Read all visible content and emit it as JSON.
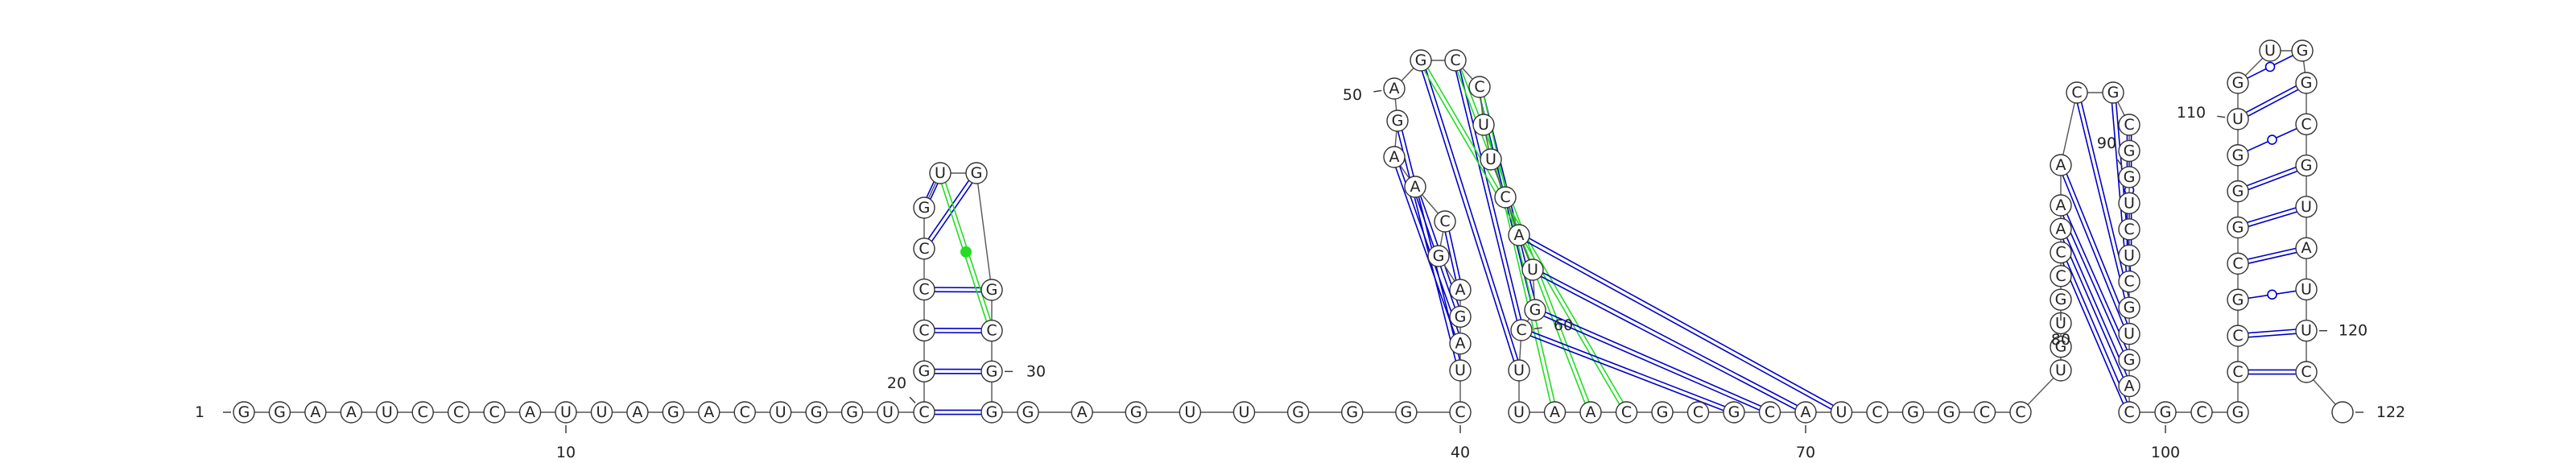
{
  "sequence": "GGAAUCCCAUUAGACUGGUCGCCCGUGGCGGGAGUUGGGCUAGAGCAAGAGCCUUCAUGCUUAACGCGCAUCGGCCUGUGCCAAACGCGGUCUCGUGACGCGCCGCGGGUGUGGCGUAUUC",
  "length": 122,
  "position_labels": [
    {
      "text": "1",
      "index": 1
    },
    {
      "text": "10",
      "index": 10
    },
    {
      "text": "20",
      "index": 20
    },
    {
      "text": "30",
      "index": 30
    },
    {
      "text": "40",
      "index": 40
    },
    {
      "text": "50",
      "index": 50
    },
    {
      "text": "60",
      "index": 60
    },
    {
      "text": "70",
      "index": 70
    },
    {
      "text": "80",
      "index": 80
    },
    {
      "text": "90",
      "index": 90
    },
    {
      "text": "100",
      "index": 100
    },
    {
      "text": "110",
      "index": 110
    },
    {
      "text": "120",
      "index": 120
    },
    {
      "text": "122",
      "index": 122
    }
  ],
  "base_pairs": [
    {
      "i": 20,
      "j": 31,
      "type": "canonical"
    },
    {
      "i": 21,
      "j": 30,
      "type": "canonical"
    },
    {
      "i": 22,
      "j": 29,
      "type": "canonical"
    },
    {
      "i": 23,
      "j": 28,
      "type": "canonical"
    },
    {
      "i": 24,
      "j": 27,
      "type": "canonical"
    },
    {
      "i": 25,
      "j": 26,
      "type": "canonical"
    },
    {
      "i": 26,
      "j": 29,
      "type": "non-canonical"
    },
    {
      "i": 41,
      "j": 49,
      "type": "canonical"
    },
    {
      "i": 42,
      "j": 48,
      "type": "canonical"
    },
    {
      "i": 43,
      "j": 47,
      "type": "canonical"
    },
    {
      "i": 44,
      "j": 46,
      "type": "canonical"
    },
    {
      "i": 51,
      "j": 61,
      "type": "canonical"
    },
    {
      "i": 52,
      "j": 60,
      "type": "canonical"
    },
    {
      "i": 53,
      "j": 59,
      "type": "canonical"
    },
    {
      "i": 51,
      "j": 65,
      "type": "non-canonical"
    },
    {
      "i": 52,
      "j": 64,
      "type": "non-canonical"
    },
    {
      "i": 53,
      "j": 63,
      "type": "non-canonical"
    },
    {
      "i": 57,
      "j": 71,
      "type": "canonical"
    },
    {
      "i": 58,
      "j": 70,
      "type": "canonical"
    },
    {
      "i": 59,
      "j": 69,
      "type": "canonical"
    },
    {
      "i": 60,
      "j": 68,
      "type": "canonical"
    },
    {
      "i": 82,
      "j": 99,
      "type": "canonical"
    },
    {
      "i": 83,
      "j": 98,
      "type": "canonical"
    },
    {
      "i": 84,
      "j": 97,
      "type": "canonical"
    },
    {
      "i": 85,
      "j": 96,
      "type": "canonical"
    },
    {
      "i": 86,
      "j": 95,
      "type": "canonical"
    },
    {
      "i": 87,
      "j": 94,
      "type": "canonical"
    },
    {
      "i": 88,
      "j": 93,
      "type": "canonical"
    },
    {
      "i": 89,
      "j": 92,
      "type": "wobble"
    },
    {
      "i": 103,
      "j": 121,
      "type": "canonical"
    },
    {
      "i": 104,
      "j": 120,
      "type": "canonical"
    },
    {
      "i": 105,
      "j": 119,
      "type": "wobble"
    },
    {
      "i": 106,
      "j": 118,
      "type": "canonical"
    },
    {
      "i": 107,
      "j": 117,
      "type": "canonical"
    },
    {
      "i": 108,
      "j": 116,
      "type": "canonical"
    },
    {
      "i": 109,
      "j": 115,
      "type": "wobble"
    },
    {
      "i": 110,
      "j": 114,
      "type": "canonical"
    },
    {
      "i": 111,
      "j": 113,
      "type": "wobble"
    }
  ],
  "colors": {
    "canonical": "#0000cc",
    "wobble": "#0000cc",
    "non-canonical": "#22dd22",
    "backbone": "#555555",
    "nucleotide_border": "#333333"
  }
}
